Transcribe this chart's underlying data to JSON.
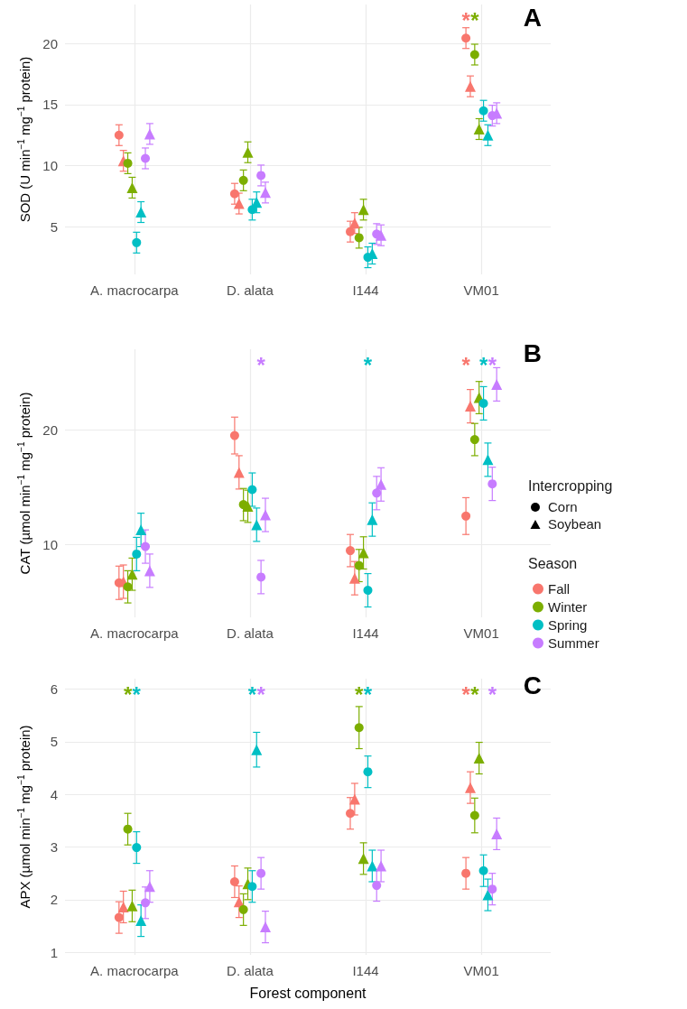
{
  "chart_data": [
    {
      "type": "scatter",
      "title": "A",
      "ylabel": "SOD (U min$^{−1}$ mg$^{−1}$ protein)",
      "categories": [
        "A. macrocarpa",
        "D. alata",
        "I144",
        "VM01"
      ],
      "ylim": [
        1.1,
        23.2
      ],
      "yticks": [
        5,
        10,
        15,
        20
      ],
      "grid": true,
      "legend": false,
      "series": [
        {
          "color": "#f8766d",
          "marker": "circle",
          "values": [
            12.5,
            7.7,
            4.6,
            20.45
          ],
          "errors": [
            0.85,
            0.85,
            0.85,
            0.85
          ]
        },
        {
          "color": "#f8766d",
          "marker": "triangle",
          "values": [
            10.4,
            6.9,
            5.3,
            16.5
          ],
          "errors": [
            0.85,
            0.85,
            0.85,
            0.85
          ]
        },
        {
          "color": "#7cae00",
          "marker": "circle",
          "values": [
            10.2,
            8.8,
            4.1,
            19.1
          ],
          "errors": [
            0.85,
            0.85,
            0.85,
            0.85
          ]
        },
        {
          "color": "#7cae00",
          "marker": "triangle",
          "values": [
            8.2,
            11.1,
            6.4,
            13.0
          ],
          "errors": [
            0.85,
            0.85,
            0.85,
            0.85
          ]
        },
        {
          "color": "#00bfc4",
          "marker": "circle",
          "values": [
            3.7,
            6.4,
            2.5,
            14.5
          ],
          "errors": [
            0.85,
            0.85,
            0.85,
            0.85
          ]
        },
        {
          "color": "#00bfc4",
          "marker": "triangle",
          "values": [
            6.2,
            7.0,
            2.8,
            12.5
          ],
          "errors": [
            0.85,
            0.85,
            0.85,
            0.85
          ]
        },
        {
          "color": "#c77cff",
          "marker": "circle",
          "values": [
            10.6,
            9.2,
            4.4,
            14.1
          ],
          "errors": [
            0.85,
            0.85,
            0.85,
            0.85
          ]
        },
        {
          "color": "#c77cff",
          "marker": "triangle",
          "values": [
            12.6,
            7.8,
            4.3,
            14.3
          ],
          "errors": [
            0.85,
            0.85,
            0.85,
            0.85
          ]
        }
      ],
      "annotations": [
        "*",
        "*"
      ]
    },
    {
      "type": "scatter",
      "title": "B",
      "ylabel": "CAT (µmol min$^{−1}$ mg$^{−1}$ protein)",
      "categories": [
        "A. macrocarpa",
        "D. alata",
        "I144",
        "VM01"
      ],
      "ylim": [
        3.7,
        27
      ],
      "yticks": [
        10,
        20
      ],
      "grid": true,
      "legend": "right",
      "legend_title": "Season",
      "series": [
        {
          "name": "Fall",
          "color": "#f8766d",
          "marker": "circle",
          "values": [
            6.7,
            19.5,
            9.5,
            12.5
          ],
          "errors": [
            1.45,
            1.6,
            1.4,
            1.6
          ]
        },
        {
          "color": "#f8766d",
          "marker": "triangle",
          "values": [
            6.8,
            16.3,
            7.1,
            22.05
          ],
          "errors": [
            1.45,
            1.45,
            1.45,
            1.45
          ]
        },
        {
          "name": "Winter",
          "color": "#7cae00",
          "marker": "circle",
          "values": [
            6.35,
            13.5,
            8.2,
            19.15
          ],
          "errors": [
            1.4,
            1.4,
            1.4,
            1.4
          ]
        },
        {
          "color": "#7cae00",
          "marker": "triangle",
          "values": [
            7.45,
            13.35,
            9.3,
            22.8
          ],
          "errors": [
            1.4,
            1.4,
            1.4,
            1.4
          ]
        },
        {
          "name": "Spring",
          "color": "#00bfc4",
          "marker": "circle",
          "values": [
            9.2,
            14.8,
            6.05,
            22.3
          ],
          "errors": [
            1.45,
            1.45,
            1.45,
            1.45
          ]
        },
        {
          "color": "#00bfc4",
          "marker": "triangle",
          "values": [
            11.3,
            11.75,
            12.2,
            17.4
          ],
          "errors": [
            1.45,
            1.45,
            1.45,
            1.45
          ]
        },
        {
          "name": "Summer",
          "color": "#c77cff",
          "marker": "circle",
          "values": [
            9.85,
            7.2,
            14.5,
            15.3
          ],
          "errors": [
            1.45,
            1.45,
            1.45,
            1.45
          ]
        },
        {
          "color": "#c77cff",
          "marker": "triangle",
          "values": [
            7.75,
            12.6,
            15.25,
            23.95
          ],
          "errors": [
            1.45,
            1.45,
            1.45,
            1.45
          ]
        }
      ],
      "annotations": [
        "Intercropping",
        "Corn",
        "Soybean",
        "*",
        "*",
        "*",
        "*",
        "*"
      ]
    },
    {
      "type": "scatter",
      "title": "C",
      "ylabel": "APX (µmol min$^{−1}$ mg$^{−1}$ protein)",
      "xlabel": "Forest component",
      "categories": [
        "A. macrocarpa",
        "D. alata",
        "I144",
        "VM01"
      ],
      "ylim": [
        0.95,
        6.2
      ],
      "yticks": [
        1,
        2,
        3,
        4,
        5,
        6
      ],
      "grid": true,
      "legend": false,
      "series": [
        {
          "color": "#f8766d",
          "marker": "circle",
          "values": [
            1.66,
            2.34,
            3.64,
            2.5
          ],
          "errors": [
            0.3,
            0.3,
            0.3,
            0.3
          ]
        },
        {
          "color": "#f8766d",
          "marker": "triangle",
          "values": [
            1.86,
            1.96,
            3.91,
            4.13
          ],
          "errors": [
            0.3,
            0.3,
            0.3,
            0.3
          ]
        },
        {
          "color": "#7cae00",
          "marker": "circle",
          "values": [
            3.34,
            1.81,
            5.27,
            3.6
          ],
          "errors": [
            0.3,
            0.3,
            0.4,
            0.33
          ]
        },
        {
          "color": "#7cae00",
          "marker": "triangle",
          "values": [
            1.88,
            2.3,
            2.78,
            4.69
          ],
          "errors": [
            0.3,
            0.3,
            0.3,
            0.3
          ]
        },
        {
          "color": "#00bfc4",
          "marker": "circle",
          "values": [
            2.99,
            2.25,
            4.43,
            2.55
          ],
          "errors": [
            0.3,
            0.3,
            0.3,
            0.3
          ]
        },
        {
          "color": "#00bfc4",
          "marker": "triangle",
          "values": [
            1.6,
            4.85,
            2.64,
            2.09
          ],
          "errors": [
            0.3,
            0.33,
            0.3,
            0.3
          ]
        },
        {
          "color": "#c77cff",
          "marker": "circle",
          "values": [
            1.94,
            2.5,
            2.27,
            2.2
          ],
          "errors": [
            0.3,
            0.3,
            0.3,
            0.3
          ]
        },
        {
          "color": "#c77cff",
          "marker": "triangle",
          "values": [
            2.25,
            1.48,
            2.64,
            3.25
          ],
          "errors": [
            0.3,
            0.3,
            0.3,
            0.3
          ]
        }
      ],
      "annotations": [
        "*",
        "*",
        "*",
        "*",
        "*",
        "*",
        "*",
        "*",
        "*"
      ]
    }
  ]
}
